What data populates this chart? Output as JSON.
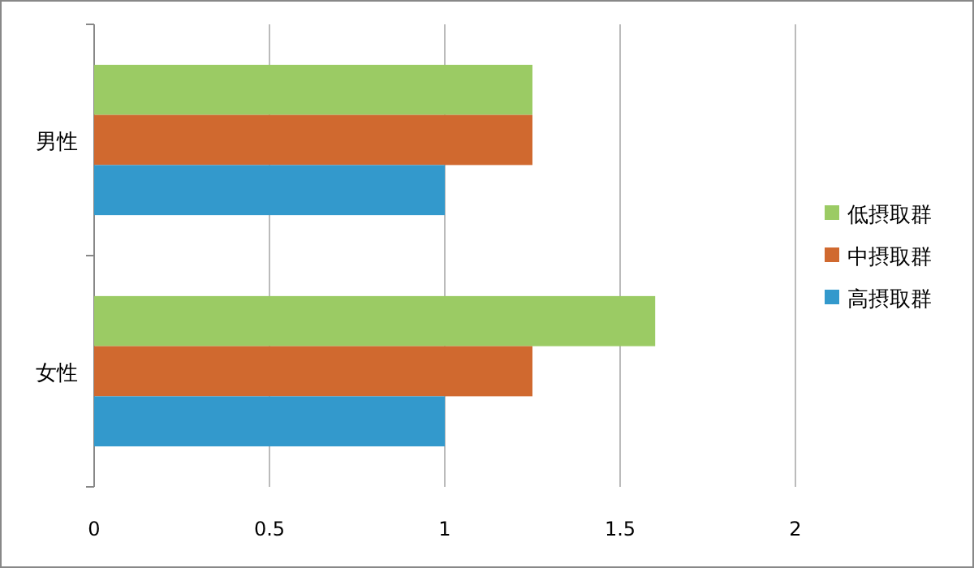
{
  "chart_data": {
    "type": "bar",
    "orientation": "horizontal",
    "categories": [
      "男性",
      "女性"
    ],
    "series": [
      {
        "name": "低摂取群",
        "color": "#9bcb64",
        "values": [
          1.25,
          1.6
        ]
      },
      {
        "name": "中摂取群",
        "color": "#d0692f",
        "values": [
          1.25,
          1.25
        ]
      },
      {
        "name": "高摂取群",
        "color": "#3399cc",
        "values": [
          1.0,
          1.0
        ]
      }
    ],
    "xlim": [
      0,
      2
    ],
    "xticks": [
      0,
      0.5,
      1,
      1.5,
      2
    ],
    "grid": "x",
    "legend": "right"
  }
}
